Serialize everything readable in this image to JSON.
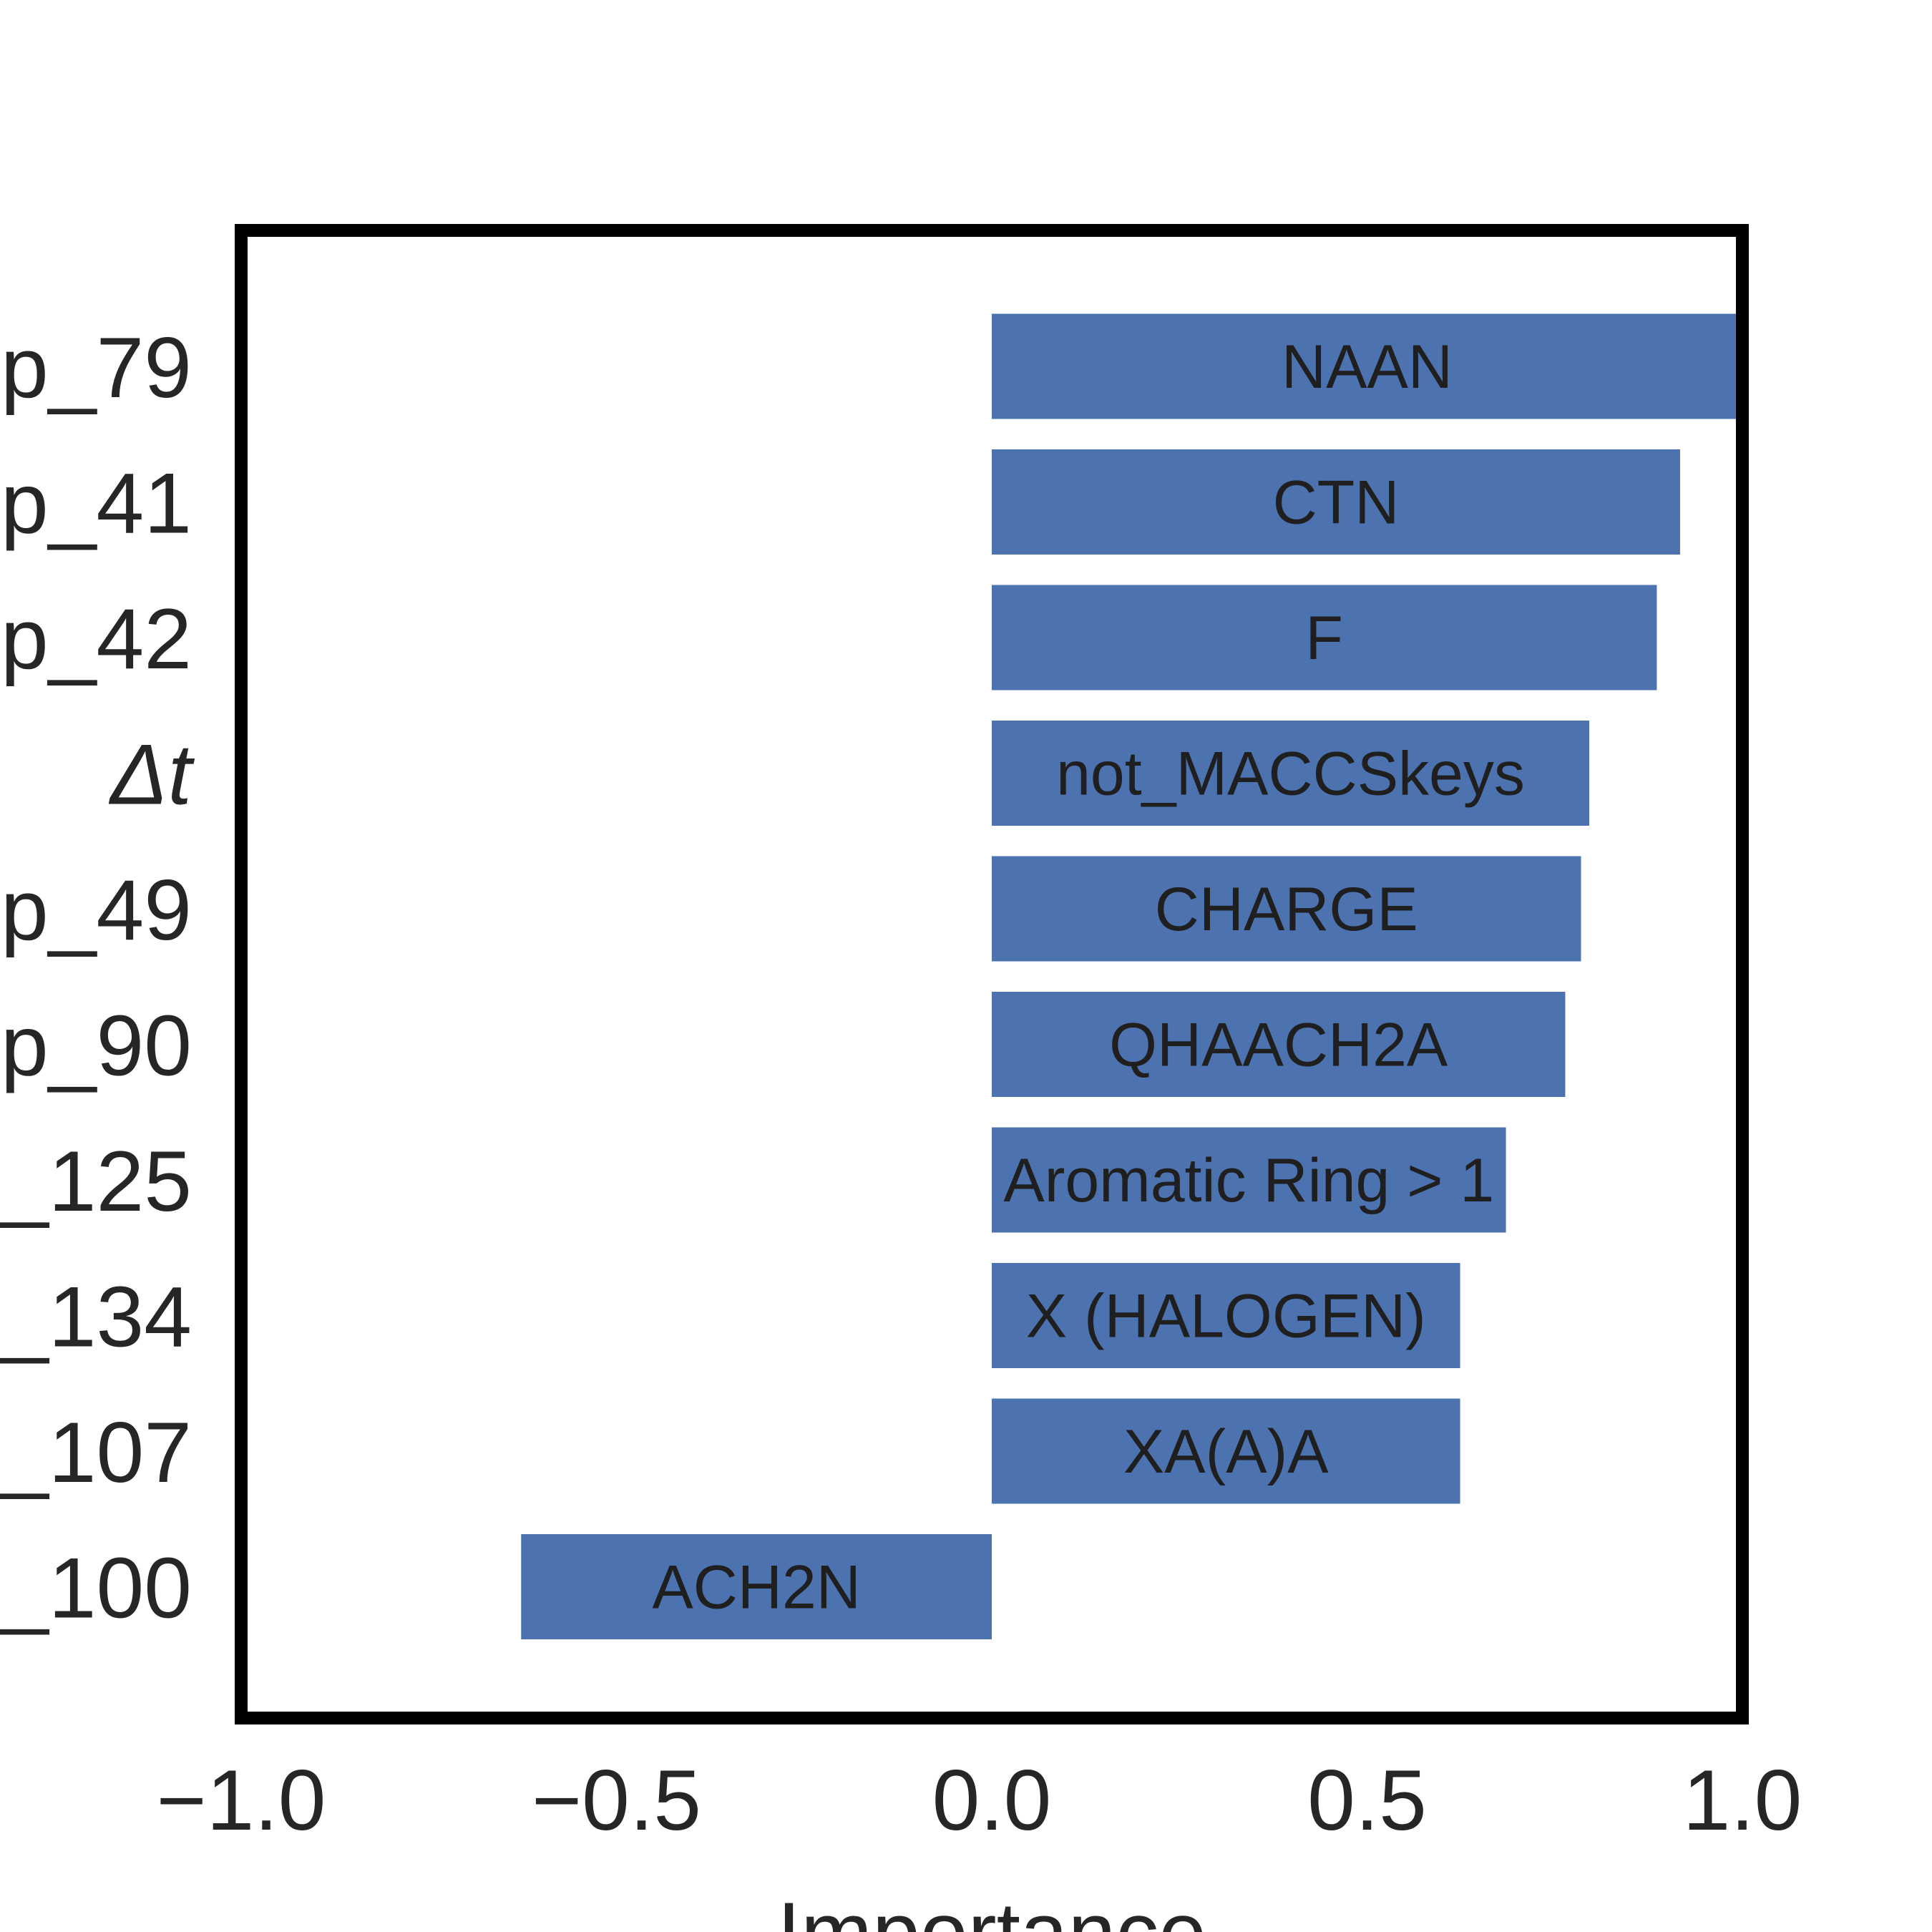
{
  "chart_data": {
    "type": "bar",
    "orientation": "horizontal",
    "categories": [
      "p_79",
      "p_41",
      "p_42",
      "Δt",
      "p_49",
      "p_90",
      "_125",
      "_134",
      "_107",
      "_100"
    ],
    "series": [
      {
        "values": [
          1.0,
          0.917,
          0.886,
          0.796,
          0.785,
          0.764,
          0.685,
          0.624,
          0.624,
          -0.627
        ],
        "bar_labels": [
          "NAAN",
          "CTN",
          "F",
          "not_MACCSkeys",
          "CHARGE",
          "QHAACH2A",
          "Aromatic Ring > 1",
          "X (HALOGEN)",
          "XA(A)A",
          "ACH2N"
        ]
      }
    ],
    "xlabel": "Importance",
    "ylabel": "",
    "xlim": [
      -1.0,
      1.0
    ],
    "xticks": [
      "−1.0",
      "−0.5",
      "0.0",
      "0.5",
      "1.0"
    ],
    "xtick_values": [
      -1.0,
      -0.5,
      0.0,
      0.5,
      1.0
    ],
    "grid": false,
    "bar_color": "#4c72b0"
  }
}
